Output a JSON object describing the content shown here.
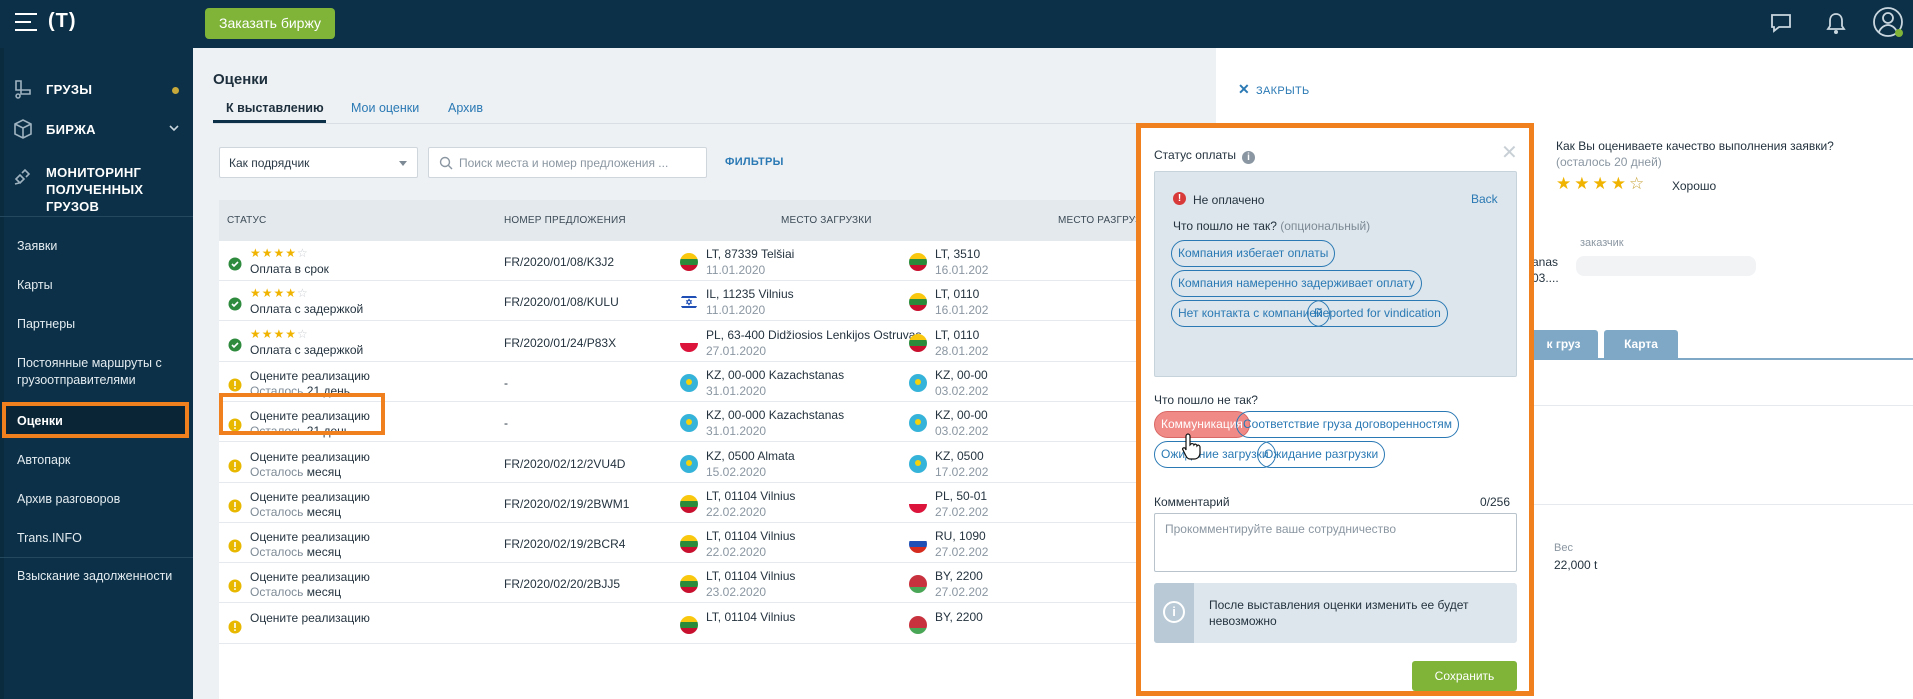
{
  "header": {
    "logo": "(T)",
    "order_button": "Заказать биржу"
  },
  "sidebar": {
    "main": [
      {
        "label": "ГРУЗЫ",
        "icon": "cargo-icon"
      },
      {
        "label": "БИРЖА",
        "icon": "box-icon"
      },
      {
        "label": "МОНИТОРИНГ",
        "label2": "ПОЛУЧЕННЫХ ГРУЗОВ",
        "icon": "satellite-icon"
      }
    ],
    "items": [
      {
        "label": "Заявки"
      },
      {
        "label": "Карты"
      },
      {
        "label": "Партнеры"
      },
      {
        "label": "Постоянные маршруты с",
        "label2": "грузоотправителями"
      },
      {
        "label": "Оценки"
      },
      {
        "label": "Автопарк"
      },
      {
        "label": "Архив разговоров"
      },
      {
        "label": "Trans.INFO"
      },
      {
        "label": "Взыскание задолженности"
      }
    ]
  },
  "page": {
    "title": "Оценки",
    "tabs": [
      "К выставлению",
      "Мои оценки",
      "Архив"
    ],
    "select_value": "Как подрядчик",
    "search_placeholder": "Поиск места и номер предложения ...",
    "filters": "ФИЛЬТРЫ"
  },
  "table": {
    "columns": [
      "СТАТУС",
      "НОМЕР ПРЕДЛОЖЕНИЯ",
      "МЕСТО ЗАГРУЗКИ",
      "МЕСТО РАЗГРУЗ"
    ],
    "rows": [
      {
        "status": "Оплата в срок",
        "stars": 4,
        "offer": "FR/2020/01/08/K3J2",
        "load": "LT, 87339 Telšiai",
        "load_date": "11.01.2020",
        "unload": "LT, 3510",
        "unload_date": "16.01.202"
      },
      {
        "status": "Оплата с задержкой",
        "stars": 4,
        "offer": "FR/2020/01/08/KULU",
        "load": "IL, 11235 Vilnius",
        "load_date": "11.01.2020",
        "unload": "LT, 0110",
        "unload_date": "16.01.202"
      },
      {
        "status": "Оплата с задержкой",
        "stars": 4,
        "offer": "FR/2020/01/24/P83X",
        "load": "PL, 63-400 Didžiosios Lenkijos Ostruvas",
        "load_date": "27.01.2020",
        "unload": "LT, 0110",
        "unload_date": "28.01.202"
      },
      {
        "status": "Оцените реализацию",
        "remain_label": "Осталось",
        "remain": "21 день",
        "offer": "-",
        "load": "KZ, 00-000 Kazachstanas",
        "load_date": "31.01.2020",
        "unload": "KZ, 00-00",
        "unload_date": "03.02.202"
      },
      {
        "status": "Оцените реализацию",
        "remain_label": "Осталось",
        "remain": "21 день",
        "offer": "-",
        "load": "KZ, 00-000 Kazachstanas",
        "load_date": "31.01.2020",
        "unload": "KZ, 00-00",
        "unload_date": "03.02.202"
      },
      {
        "status": "Оцените реализацию",
        "remain_label": "Осталось",
        "remain": "месяц",
        "offer": "FR/2020/02/12/2VU4D",
        "load": "KZ, 0500 Almata",
        "load_date": "15.02.2020",
        "unload": "KZ, 0500",
        "unload_date": "17.02.202"
      },
      {
        "status": "Оцените реализацию",
        "remain_label": "Осталось",
        "remain": "месяц",
        "offer": "FR/2020/02/19/2BWM1",
        "load": "LT, 01104 Vilnius",
        "load_date": "22.02.2020",
        "unload": "PL, 50-01",
        "unload_date": "27.02.202"
      },
      {
        "status": "Оцените реализацию",
        "remain_label": "Осталось",
        "remain": "месяц",
        "offer": "FR/2020/02/19/2BCR4",
        "load": "LT, 01104 Vilnius",
        "load_date": "22.02.2020",
        "unload": "RU, 1090",
        "unload_date": "27.02.202"
      },
      {
        "status": "Оцените реализацию",
        "remain_label": "Осталось",
        "remain": "месяц",
        "offer": "FR/2020/02/20/2BJJ5",
        "load": "LT, 01104 Vilnius",
        "load_date": "23.02.2020",
        "unload": "BY, 2200",
        "unload_date": "27.02.202"
      },
      {
        "status": "Оцените реализацию",
        "offer": "",
        "load": "LT, 01104 Vilnius",
        "load_date": "",
        "unload": "BY, 2200",
        "unload_date": ""
      }
    ]
  },
  "detail": {
    "close": "ЗАКРЫТЬ",
    "question": "Как Вы оцениваете качество выполнения заявки?",
    "remaining": "(осталось 20 дней)",
    "rating": 4,
    "rating_label": "Хорошо",
    "customer_label": "заказчик",
    "cut_text_1": "anas",
    "cut_text_2": "03....",
    "tab_cut": "к груз",
    "tab_map": "Карта",
    "weight_label": "Вес",
    "weight_value": "22,000 t"
  },
  "popup": {
    "title": "Статус оплаты",
    "not_paid": "Не оплачено",
    "back": "Back",
    "what_wrong": "Что пошло не так?",
    "optional": "(опциональный)",
    "payment_chips": [
      "Компания избегает оплаты",
      "Компания намеренно задерживает оплату",
      "Нет контакта с компанией",
      "Reported for vindication"
    ],
    "q2": "Что пошло не так?",
    "chips": [
      "Коммуникация",
      "Соответствие груза договоренностям",
      "Ожидание загрузки",
      "Ожидание разгрузки"
    ],
    "comment_label": "Комментарий",
    "counter": "0/256",
    "comment_placeholder": "Прокомментируйте ваше сотрудничество",
    "notice": "После выставления оценки изменить ее будет невозможно",
    "save": "Сохранить"
  },
  "colors": {
    "navy": "#0c3047",
    "green": "#7fb439",
    "orange_highlight": "#f07f1e",
    "link_blue": "#2a79b4",
    "chip_active": "#f08a87"
  }
}
